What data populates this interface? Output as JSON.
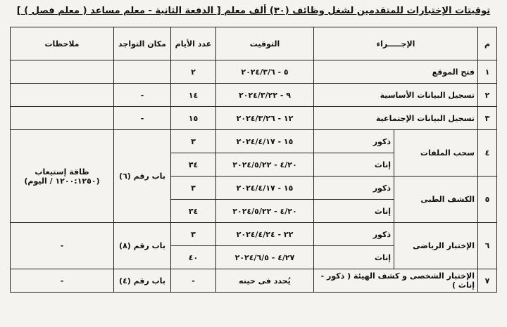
{
  "title": "توقيتات الإختبارات للمتقدمين لشغل وظائف (٣٠) ألف معلم [ الدفعة الثانية - معلم مساعد ( معلم فصل ) ]",
  "table": {
    "headers": [
      "م",
      "الإجـــــراء",
      "التوقيت",
      "عدد الأيام",
      "مكان التواجد",
      "ملاحظات"
    ],
    "rows": [
      {
        "no": "١",
        "action": "فتح الموقع",
        "period": "٥ - ٢٠٢٤/٣/٦",
        "days": "٢"
      },
      {
        "no": "٢",
        "action": "تسجيل البيانات الأساسية",
        "period": "٩ - ٢٠٢٤/٣/٢٢",
        "days": "١٤",
        "place": "-"
      },
      {
        "no": "٣",
        "action": "تسجيل البيانات الإجتماعية",
        "period": "١٢ - ٢٠٢٤/٣/٢٦",
        "days": "١٥",
        "place": "-"
      },
      {
        "no": "٤",
        "action": "سحب الملفات",
        "place": "باب رقم (٦)",
        "notes": [
          "طاقة إستيعاب",
          "(١٢٠٠:١٢٥٠ / اليوم)"
        ],
        "sub": [
          {
            "group": "ذكور",
            "period": "١٥ - ٢٠٢٤/٤/١٧",
            "days": "٣"
          },
          {
            "group": "إناث",
            "period": "٤/٢٠ - ٢٠٢٤/٥/٢٢",
            "days": "٣٤"
          }
        ]
      },
      {
        "no": "٥",
        "action": "الكشف الطبى",
        "sub": [
          {
            "group": "ذكور",
            "period": "١٥ - ٢٠٢٤/٤/١٧",
            "days": "٣"
          },
          {
            "group": "إناث",
            "period": "٤/٢٠ - ٢٠٢٤/٥/٢٢",
            "days": "٣٤"
          }
        ]
      },
      {
        "no": "٦",
        "action": "الإختبار الرياضى",
        "place": "باب رقم (٨)",
        "notes": "-",
        "sub": [
          {
            "group": "ذكور",
            "period": "٢٢ - ٢٠٢٤/٤/٢٤",
            "days": "٣"
          },
          {
            "group": "إناث",
            "period": "٤/٢٧ - ٢٠٢٤/٦/٥",
            "days": "٤٠"
          }
        ]
      },
      {
        "no": "٧",
        "action": "الإختبار الشخصى و كشف الهيئة ( ذكور - إناث )",
        "period": "يُحدد فى حينه",
        "days": "-",
        "place": "باب رقم (٤)",
        "notes": "-"
      }
    ]
  }
}
